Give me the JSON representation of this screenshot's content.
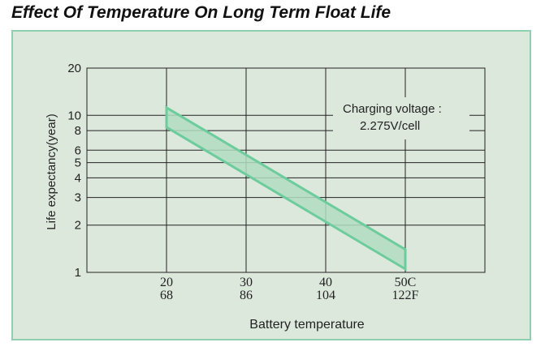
{
  "title": "Effect Of Temperature On Long Term Float Life",
  "chart_data": {
    "type": "area",
    "title": "Effect Of Temperature On Long Term Float Life",
    "xlabel": "Battery temperature",
    "ylabel": "Life expectancy(year)",
    "y_scale": "log",
    "ylim": [
      1,
      20
    ],
    "xlim": [
      10,
      60
    ],
    "y_ticks": [
      1,
      2,
      3,
      4,
      5,
      6,
      8,
      10,
      20
    ],
    "x_ticks": [
      {
        "c": 20,
        "label_c": "20",
        "label_f": "68"
      },
      {
        "c": 30,
        "label_c": "30",
        "label_f": "86"
      },
      {
        "c": 40,
        "label_c": "40",
        "label_f": "104"
      },
      {
        "c": 50,
        "label_c": "50C",
        "label_f": "122F"
      }
    ],
    "band": {
      "x": [
        20,
        50
      ],
      "upper": [
        11.2,
        1.4
      ],
      "lower": [
        8.4,
        1.05
      ]
    },
    "grid": true,
    "annotation": {
      "line1": "Charging voltage :",
      "line2": "2.275V/cell"
    },
    "colors": {
      "band_fill": "#b2dcc1",
      "band_edge": "#6ccc9c",
      "panel_bg": "#dde8dd",
      "panel_border": "#8fcfb0",
      "axis": "#222222"
    }
  }
}
